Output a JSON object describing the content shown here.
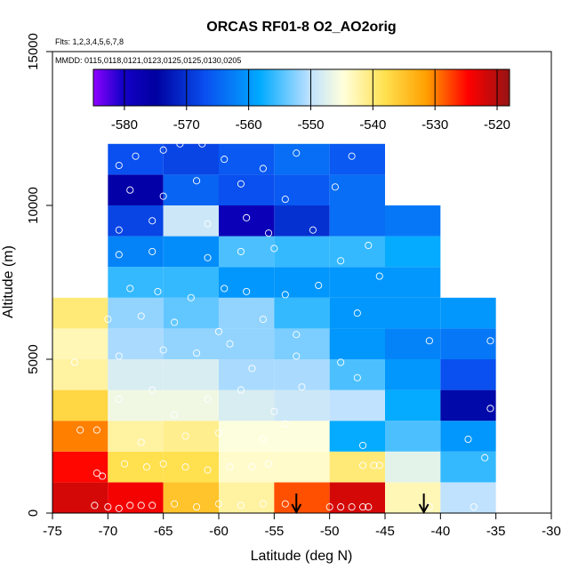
{
  "chart_data": {
    "type": "heatmap",
    "title": "ORCAS RF01-8 O2_AO2orig",
    "flights_note": "Flts: 1,2,3,4,5,6,7,8",
    "dates_note": "MMDD: 0115,0118,0121,0123,0125,0125,0130,0205",
    "xlabel": "Latitude (deg N)",
    "ylabel": "Altitude (m)",
    "xlim": [
      -75,
      -30
    ],
    "ylim": [
      0,
      15000
    ],
    "x_ticks": [
      -75,
      -70,
      -65,
      -60,
      -55,
      -50,
      -45,
      -40,
      -35,
      -30
    ],
    "x_tick_labels": [
      "-75",
      "-70",
      "-65",
      "-60",
      "-55",
      "-50",
      "-45",
      "-40",
      "-35",
      "-30"
    ],
    "y_ticks": [
      0,
      5000,
      10000,
      15000
    ],
    "y_tick_labels": [
      "0",
      "5000",
      "10000",
      "15000"
    ],
    "colorbar": {
      "range": [
        -585,
        -518
      ],
      "ticks": [
        -580,
        -570,
        -560,
        -550,
        -540,
        -530,
        -520
      ],
      "tick_labels": [
        "-580",
        "-570",
        "-560",
        "-550",
        "-540",
        "-530",
        "-520"
      ]
    },
    "cell_width_deg": 5,
    "cell_height_m": 1000,
    "columns": [
      {
        "lat_start": -75,
        "values": [
          -522,
          -525,
          -530,
          -537,
          -542,
          -543,
          -540
        ]
      },
      {
        "lat_start": -70,
        "values": [
          -524,
          -538,
          -542,
          -546,
          -548,
          -551,
          -552,
          -556,
          -562,
          -568,
          -576,
          -567
        ]
      },
      {
        "lat_start": -65,
        "values": [
          -535,
          -538,
          -541,
          -546,
          -548,
          -552,
          -554,
          -556,
          -561,
          -549,
          -565,
          -568
        ]
      },
      {
        "lat_start": -60,
        "values": [
          -542,
          -544,
          -545,
          -548,
          -551,
          -552,
          -552,
          -560,
          -555,
          -578,
          -567,
          -566
        ]
      },
      {
        "lat_start": -55,
        "values": [
          -528,
          -544,
          -545,
          -549,
          -551,
          -553,
          -556,
          -560,
          -556,
          -570,
          -566,
          -564
        ]
      },
      {
        "lat_start": -50,
        "values": [
          -522,
          -540,
          -558,
          -550,
          -555,
          -560,
          -560,
          -560,
          -556,
          -564,
          -564,
          -566
        ]
      },
      {
        "lat_start": -45,
        "values": [
          -543,
          -547,
          -555,
          -558,
          -560,
          -562,
          -560,
          -560,
          -558,
          -563
        ]
      },
      {
        "lat_start": -40,
        "values": [
          -550,
          -556,
          -560,
          -574,
          -567,
          -563,
          -560
        ]
      }
    ],
    "arrows_at_lat": [
      -53,
      -41.5
    ],
    "sample_points": [
      [
        -71.2,
        250
      ],
      [
        -70.0,
        200
      ],
      [
        -69.0,
        150
      ],
      [
        -68.0,
        250
      ],
      [
        -67.0,
        250
      ],
      [
        -66.0,
        250
      ],
      [
        -64.0,
        300
      ],
      [
        -62.0,
        200
      ],
      [
        -60.0,
        300
      ],
      [
        -58.0,
        250
      ],
      [
        -56.0,
        300
      ],
      [
        -54.0,
        300
      ],
      [
        -50.0,
        200
      ],
      [
        -49.0,
        200
      ],
      [
        -48.0,
        200
      ],
      [
        -47.0,
        200
      ],
      [
        -46.5,
        200
      ],
      [
        -41.0,
        200
      ],
      [
        -37.0,
        200
      ],
      [
        -71.0,
        1300
      ],
      [
        -70.5,
        1200
      ],
      [
        -68.5,
        1600
      ],
      [
        -66.5,
        1500
      ],
      [
        -65.0,
        1600
      ],
      [
        -63.0,
        1500
      ],
      [
        -61.0,
        1400
      ],
      [
        -59.0,
        1500
      ],
      [
        -57.0,
        1500
      ],
      [
        -55.5,
        1600
      ],
      [
        -47.0,
        1550
      ],
      [
        -46.0,
        1550
      ],
      [
        -45.5,
        1550
      ],
      [
        -36.0,
        1800
      ],
      [
        -72.5,
        2700
      ],
      [
        -71.0,
        2700
      ],
      [
        -67.0,
        2300
      ],
      [
        -63.0,
        2500
      ],
      [
        -60.0,
        2600
      ],
      [
        -56.0,
        2400
      ],
      [
        -54.0,
        2900
      ],
      [
        -47.0,
        2200
      ],
      [
        -37.5,
        2400
      ],
      [
        -69.0,
        3700
      ],
      [
        -66.0,
        4000
      ],
      [
        -64.0,
        3200
      ],
      [
        -61.0,
        3700
      ],
      [
        -58.0,
        4000
      ],
      [
        -55.0,
        3300
      ],
      [
        -52.5,
        4100
      ],
      [
        -47.5,
        4400
      ],
      [
        -35.5,
        3400
      ],
      [
        -73.0,
        4900
      ],
      [
        -69.0,
        5100
      ],
      [
        -65.0,
        5300
      ],
      [
        -62.0,
        5200
      ],
      [
        -59.0,
        5500
      ],
      [
        -57.0,
        4700
      ],
      [
        -53.0,
        5100
      ],
      [
        -49.0,
        4900
      ],
      [
        -41.0,
        5600
      ],
      [
        -70.0,
        6300
      ],
      [
        -67.0,
        6400
      ],
      [
        -64.0,
        6200
      ],
      [
        -60.0,
        5900
      ],
      [
        -56.0,
        6300
      ],
      [
        -53.0,
        5800
      ],
      [
        -47.5,
        6500
      ],
      [
        -35.5,
        5600
      ],
      [
        -68.0,
        7300
      ],
      [
        -65.5,
        7200
      ],
      [
        -62.5,
        7000
      ],
      [
        -59.5,
        7300
      ],
      [
        -57.5,
        7200
      ],
      [
        -54.0,
        7100
      ],
      [
        -51.0,
        7400
      ],
      [
        -45.5,
        7700
      ],
      [
        -38.5,
        7800
      ],
      [
        -35.0,
        7800
      ],
      [
        -69.0,
        8400
      ],
      [
        -66.0,
        8500
      ],
      [
        -61.0,
        8300
      ],
      [
        -58.0,
        8500
      ],
      [
        -55.0,
        8600
      ],
      [
        -49.0,
        8200
      ],
      [
        -46.5,
        8700
      ],
      [
        -39.5,
        7900
      ],
      [
        -69.0,
        9200
      ],
      [
        -66.0,
        9500
      ],
      [
        -61.0,
        9400
      ],
      [
        -57.5,
        9600
      ],
      [
        -55.5,
        9100
      ],
      [
        -51.5,
        9200
      ],
      [
        -68.0,
        10500
      ],
      [
        -65.0,
        10300
      ],
      [
        -62.0,
        10800
      ],
      [
        -58.0,
        10700
      ],
      [
        -54.0,
        10200
      ],
      [
        -49.5,
        10600
      ],
      [
        -69.0,
        11300
      ],
      [
        -67.5,
        11600
      ],
      [
        -65.0,
        11800
      ],
      [
        -63.5,
        12000
      ],
      [
        -61.5,
        12000
      ],
      [
        -59.5,
        11500
      ],
      [
        -56.0,
        11200
      ],
      [
        -53.0,
        11700
      ],
      [
        -48.0,
        11600
      ]
    ]
  }
}
